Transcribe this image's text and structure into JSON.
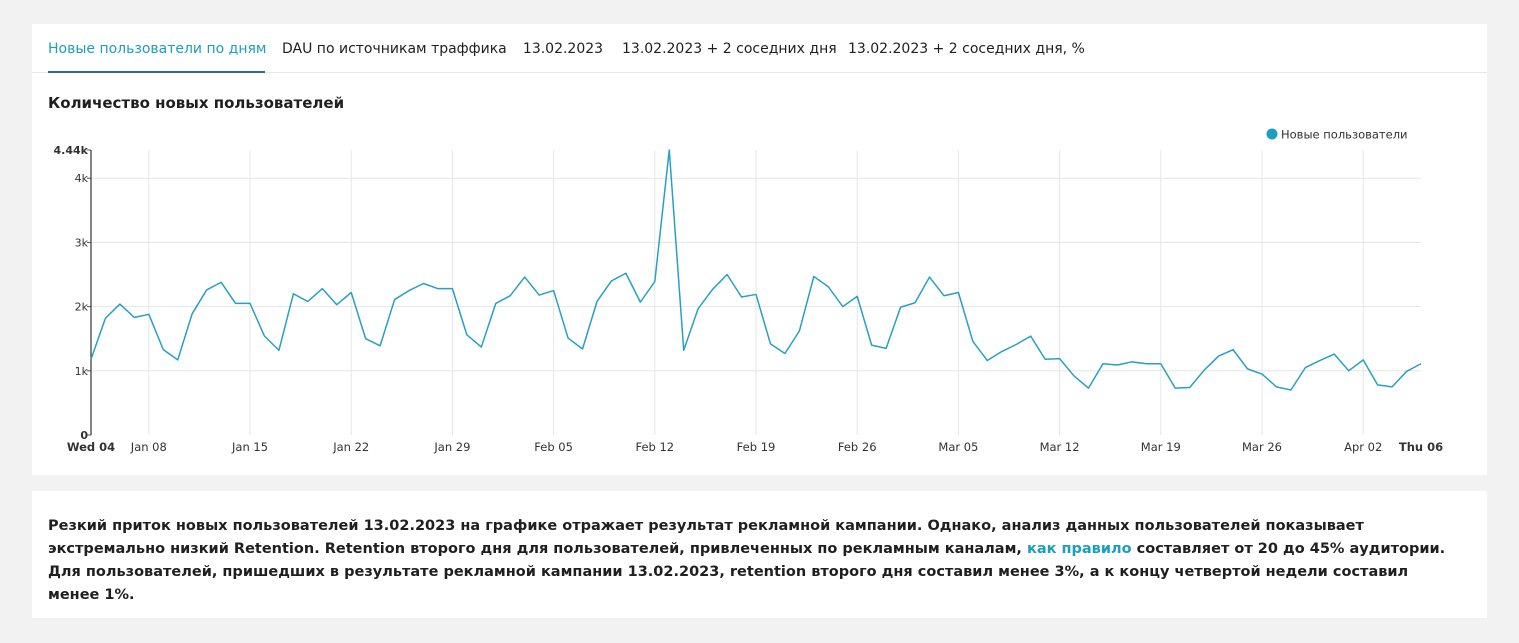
{
  "tabs": [
    {
      "label": "Новые пользователи по дням",
      "active": true
    },
    {
      "label": "DAU по источникам траффика",
      "active": false
    },
    {
      "label": "13.02.2023",
      "active": false
    },
    {
      "label": "13.02.2023 + 2 соседних дня",
      "active": false
    },
    {
      "label": "13.02.2023 + 2 соседних дня, %",
      "active": false
    }
  ],
  "chart_title": "Количество новых пользователей",
  "colors": {
    "accent": "#1c9ec0",
    "line": "#27a0c4",
    "grid": "#e6e6e6"
  },
  "chart_data": {
    "type": "line",
    "title": "Количество новых пользователей",
    "series": [
      {
        "name": "Новые пользователи",
        "x_start": "2023-01-04",
        "x_end": "2023-04-06",
        "values": [
          1180,
          1820,
          2040,
          1830,
          1880,
          1330,
          1170,
          1890,
          2260,
          2380,
          2050,
          2050,
          1540,
          1320,
          2200,
          2080,
          2280,
          2030,
          2220,
          1500,
          1390,
          2110,
          2250,
          2360,
          2280,
          2280,
          1560,
          1370,
          2050,
          2170,
          2460,
          2180,
          2250,
          1510,
          1340,
          2080,
          2400,
          2520,
          2070,
          2390,
          4440,
          1320,
          1970,
          2270,
          2500,
          2150,
          2190,
          1420,
          1270,
          1620,
          2470,
          2310,
          2000,
          2160,
          1400,
          1350,
          1990,
          2060,
          2460,
          2170,
          2220,
          1460,
          1160,
          1300,
          1410,
          1540,
          1180,
          1190,
          920,
          730,
          1110,
          1090,
          1140,
          1110,
          1110,
          730,
          740,
          1010,
          1230,
          1330,
          1030,
          950,
          750,
          700,
          1050,
          1160,
          1260,
          1000,
          1170,
          780,
          750,
          990,
          1110
        ]
      }
    ],
    "y_ticks": [
      "0",
      "1k",
      "2k",
      "3k",
      "4k",
      "4.44k"
    ],
    "y_range": [
      0,
      4440
    ],
    "x_tick_labels": [
      "Wed 04",
      "Jan 08",
      "Jan 15",
      "Jan 22",
      "Jan 29",
      "Feb 05",
      "Feb 12",
      "Feb 19",
      "Feb 26",
      "Mar 05",
      "Mar 12",
      "Mar 19",
      "Mar 26",
      "Apr 02",
      "Thu 06"
    ],
    "legend": {
      "label": "Новые пользователи",
      "position": "top-right"
    },
    "grid": true
  },
  "summary": {
    "part1": "Резкий приток новых пользователей 13.02.2023 на графике отражает результат рекламной кампании. Однако, анализ данных пользователей показывает экстремально низкий Retention. Retention второго дня для пользователей, привлеченных по рекламным каналам, ",
    "link": "как правило",
    "part2": " составляет от 20 до 45% аудитории. Для пользователей, пришедших в результате рекламной кампании 13.02.2023, retention второго дня составил менее 3%, а к концу четвертой недели составил менее 1%."
  }
}
